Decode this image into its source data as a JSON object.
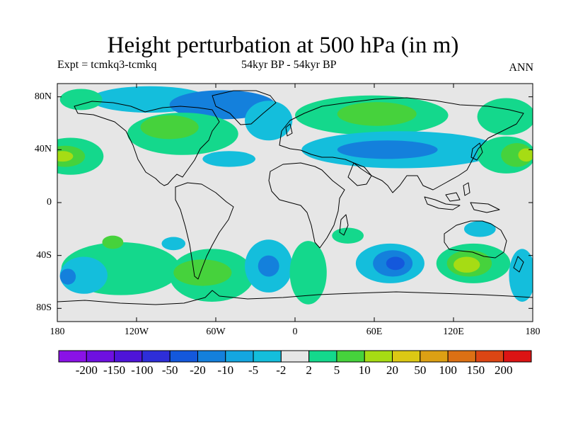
{
  "title": "Height perturbation at 500 hPa (in m)",
  "subtitle": {
    "expt": "Expt = tcmkq3-tcmkq",
    "period": "54kyr BP - 54kyr BP",
    "season": "ANN"
  },
  "map": {
    "lat_range": [
      -90,
      90
    ],
    "lon_range": [
      -180,
      180
    ],
    "lat_ticks": [
      {
        "value": 80,
        "label": "80N"
      },
      {
        "value": 40,
        "label": "40N"
      },
      {
        "value": 0,
        "label": "0"
      },
      {
        "value": -40,
        "label": "40S"
      },
      {
        "value": -80,
        "label": "80S"
      }
    ],
    "lon_ticks": [
      {
        "value": -180,
        "label": "180"
      },
      {
        "value": -120,
        "label": "120W"
      },
      {
        "value": -60,
        "label": "60W"
      },
      {
        "value": 0,
        "label": "0"
      },
      {
        "value": 60,
        "label": "60E"
      },
      {
        "value": 120,
        "label": "120E"
      },
      {
        "value": 180,
        "label": "180"
      }
    ]
  },
  "colorbar": {
    "colors": [
      "#8a12e6",
      "#6e10e0",
      "#4e14d8",
      "#2e2ed8",
      "#1458dc",
      "#1480dc",
      "#14a6e0",
      "#14bedc",
      "#e6e6e6",
      "#14d88c",
      "#46d23c",
      "#a6dc14",
      "#dcc814",
      "#dca014",
      "#dc7014",
      "#dc4614",
      "#dc1414"
    ],
    "labels": [
      "-200",
      "-150",
      "-100",
      "-50",
      "-20",
      "-10",
      "-5",
      "-2",
      "2",
      "5",
      "10",
      "20",
      "50",
      "100",
      "150",
      "200"
    ]
  },
  "regions": [
    {
      "level": "-5",
      "color": "#14bedc",
      "lon": -110,
      "lat": 78,
      "rx_deg": 45,
      "ry_deg": 10
    },
    {
      "level": "-10",
      "color": "#1480dc",
      "lon": -55,
      "lat": 74,
      "rx_deg": 40,
      "ry_deg": 11
    },
    {
      "level": "-5",
      "color": "#14bedc",
      "lon": -20,
      "lat": 62,
      "rx_deg": 18,
      "ry_deg": 15
    },
    {
      "level": "5",
      "color": "#14d88c",
      "lon": -162,
      "lat": 78,
      "rx_deg": 16,
      "ry_deg": 8
    },
    {
      "level": "5",
      "color": "#14d88c",
      "lon": -85,
      "lat": 52,
      "rx_deg": 42,
      "ry_deg": 16
    },
    {
      "level": "10",
      "color": "#46d23c",
      "lon": -95,
      "lat": 57,
      "rx_deg": 22,
      "ry_deg": 9
    },
    {
      "level": "-5",
      "color": "#14bedc",
      "lon": -50,
      "lat": 33,
      "rx_deg": 20,
      "ry_deg": 6
    },
    {
      "level": "5",
      "color": "#14d88c",
      "lon": -170,
      "lat": 35,
      "rx_deg": 25,
      "ry_deg": 14
    },
    {
      "level": "10",
      "color": "#46d23c",
      "lon": -174,
      "lat": 35,
      "rx_deg": 15,
      "ry_deg": 8
    },
    {
      "level": "20",
      "color": "#a6dc14",
      "lon": -176,
      "lat": 35,
      "rx_deg": 8,
      "ry_deg": 4
    },
    {
      "level": "5",
      "color": "#14d88c",
      "lon": 58,
      "lat": 66,
      "rx_deg": 58,
      "ry_deg": 15
    },
    {
      "level": "10",
      "color": "#46d23c",
      "lon": 62,
      "lat": 67,
      "rx_deg": 30,
      "ry_deg": 9
    },
    {
      "level": "5",
      "color": "#14d88c",
      "lon": 160,
      "lat": 65,
      "rx_deg": 22,
      "ry_deg": 14
    },
    {
      "level": "-5",
      "color": "#14bedc",
      "lon": 80,
      "lat": 40,
      "rx_deg": 75,
      "ry_deg": 14
    },
    {
      "level": "-10",
      "color": "#1480dc",
      "lon": 70,
      "lat": 40,
      "rx_deg": 38,
      "ry_deg": 7
    },
    {
      "level": "5",
      "color": "#14d88c",
      "lon": 160,
      "lat": 36,
      "rx_deg": 22,
      "ry_deg": 14
    },
    {
      "level": "10",
      "color": "#46d23c",
      "lon": 168,
      "lat": 36,
      "rx_deg": 12,
      "ry_deg": 9
    },
    {
      "level": "20",
      "color": "#a6dc14",
      "lon": 175,
      "lat": 36,
      "rx_deg": 6,
      "ry_deg": 5
    },
    {
      "level": "5",
      "color": "#14d88c",
      "lon": -132,
      "lat": -50,
      "rx_deg": 45,
      "ry_deg": 20
    },
    {
      "level": "10",
      "color": "#46d23c",
      "lon": -138,
      "lat": -30,
      "rx_deg": 8,
      "ry_deg": 5
    },
    {
      "level": "-5",
      "color": "#14bedc",
      "lon": -160,
      "lat": -55,
      "rx_deg": 18,
      "ry_deg": 14
    },
    {
      "level": "-10",
      "color": "#1480dc",
      "lon": -172,
      "lat": -56,
      "rx_deg": 6,
      "ry_deg": 6
    },
    {
      "level": "-5",
      "color": "#14bedc",
      "lon": -92,
      "lat": -31,
      "rx_deg": 9,
      "ry_deg": 5
    },
    {
      "level": "5",
      "color": "#14d88c",
      "lon": -63,
      "lat": -55,
      "rx_deg": 32,
      "ry_deg": 20
    },
    {
      "level": "10",
      "color": "#46d23c",
      "lon": -70,
      "lat": -53,
      "rx_deg": 22,
      "ry_deg": 10
    },
    {
      "level": "-5",
      "color": "#14bedc",
      "lon": -20,
      "lat": -48,
      "rx_deg": 18,
      "ry_deg": 20
    },
    {
      "level": "-10",
      "color": "#1480dc",
      "lon": -20,
      "lat": -48,
      "rx_deg": 8,
      "ry_deg": 8
    },
    {
      "level": "5",
      "color": "#14d88c",
      "lon": 10,
      "lat": -53,
      "rx_deg": 14,
      "ry_deg": 24
    },
    {
      "level": "-5",
      "color": "#14bedc",
      "lon": 72,
      "lat": -46,
      "rx_deg": 26,
      "ry_deg": 15
    },
    {
      "level": "-10",
      "color": "#1480dc",
      "lon": 74,
      "lat": -46,
      "rx_deg": 15,
      "ry_deg": 10
    },
    {
      "level": "-20",
      "color": "#1458dc",
      "lon": 76,
      "lat": -46,
      "rx_deg": 7,
      "ry_deg": 5
    },
    {
      "level": "5",
      "color": "#14d88c",
      "lon": 135,
      "lat": -46,
      "rx_deg": 28,
      "ry_deg": 15
    },
    {
      "level": "10",
      "color": "#46d23c",
      "lon": 132,
      "lat": -46,
      "rx_deg": 17,
      "ry_deg": 10
    },
    {
      "level": "20",
      "color": "#a6dc14",
      "lon": 130,
      "lat": -47,
      "rx_deg": 10,
      "ry_deg": 6
    },
    {
      "level": "-5",
      "color": "#14bedc",
      "lon": 140,
      "lat": -20,
      "rx_deg": 12,
      "ry_deg": 6
    },
    {
      "level": "-5",
      "color": "#14bedc",
      "lon": 172,
      "lat": -55,
      "rx_deg": 10,
      "ry_deg": 20
    },
    {
      "level": "5",
      "color": "#14d88c",
      "lon": 40,
      "lat": -25,
      "rx_deg": 12,
      "ry_deg": 6
    }
  ]
}
